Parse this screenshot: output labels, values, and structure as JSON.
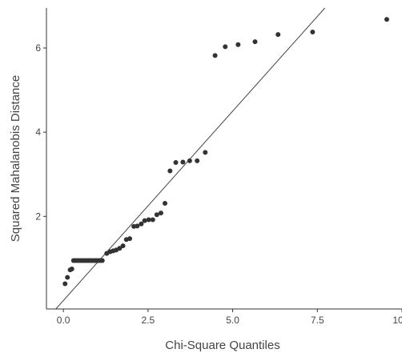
{
  "chart_data": {
    "type": "scatter",
    "xlabel": "Chi-Square Quantiles",
    "ylabel": "Squared Mahalanobis Distance",
    "xlim": [
      -0.5,
      10.0
    ],
    "ylim": [
      -0.2,
      6.95
    ],
    "xticks": [
      0.0,
      2.5,
      5.0,
      7.5,
      10.0
    ],
    "xtick_labels": [
      "0.0",
      "2.5",
      "5.0",
      "7.5",
      "10.0"
    ],
    "yticks": [
      2,
      4,
      6
    ],
    "ytick_labels": [
      "2",
      "4",
      "6"
    ],
    "grid": false,
    "reference_line": {
      "slope": 0.9,
      "intercept": 0.0
    },
    "colors": {
      "points": "#333333",
      "line": "#444444",
      "axis": "#333333"
    },
    "points": [
      [
        0.05,
        0.4
      ],
      [
        0.12,
        0.55
      ],
      [
        0.2,
        0.73
      ],
      [
        0.25,
        0.75
      ],
      [
        0.3,
        0.95
      ],
      [
        0.35,
        0.95
      ],
      [
        0.4,
        0.95
      ],
      [
        0.45,
        0.95
      ],
      [
        0.5,
        0.95
      ],
      [
        0.55,
        0.95
      ],
      [
        0.6,
        0.95
      ],
      [
        0.65,
        0.95
      ],
      [
        0.7,
        0.95
      ],
      [
        0.75,
        0.95
      ],
      [
        0.8,
        0.95
      ],
      [
        0.85,
        0.95
      ],
      [
        0.9,
        0.95
      ],
      [
        0.95,
        0.95
      ],
      [
        1.0,
        0.95
      ],
      [
        1.05,
        0.95
      ],
      [
        1.1,
        0.95
      ],
      [
        1.15,
        0.95
      ],
      [
        1.28,
        1.12
      ],
      [
        1.38,
        1.16
      ],
      [
        1.47,
        1.18
      ],
      [
        1.56,
        1.2
      ],
      [
        1.66,
        1.24
      ],
      [
        1.76,
        1.3
      ],
      [
        1.86,
        1.45
      ],
      [
        1.96,
        1.47
      ],
      [
        2.08,
        1.76
      ],
      [
        2.18,
        1.77
      ],
      [
        2.3,
        1.82
      ],
      [
        2.4,
        1.9
      ],
      [
        2.52,
        1.92
      ],
      [
        2.64,
        1.92
      ],
      [
        2.76,
        2.04
      ],
      [
        2.88,
        2.08
      ],
      [
        3.0,
        2.31
      ],
      [
        3.15,
        3.08
      ],
      [
        3.32,
        3.28
      ],
      [
        3.53,
        3.29
      ],
      [
        3.73,
        3.32
      ],
      [
        3.95,
        3.32
      ],
      [
        4.19,
        3.52
      ],
      [
        4.48,
        5.82
      ],
      [
        4.78,
        6.03
      ],
      [
        5.16,
        6.08
      ],
      [
        5.66,
        6.15
      ],
      [
        6.34,
        6.32
      ],
      [
        7.36,
        6.38
      ],
      [
        9.55,
        6.68
      ]
    ]
  }
}
